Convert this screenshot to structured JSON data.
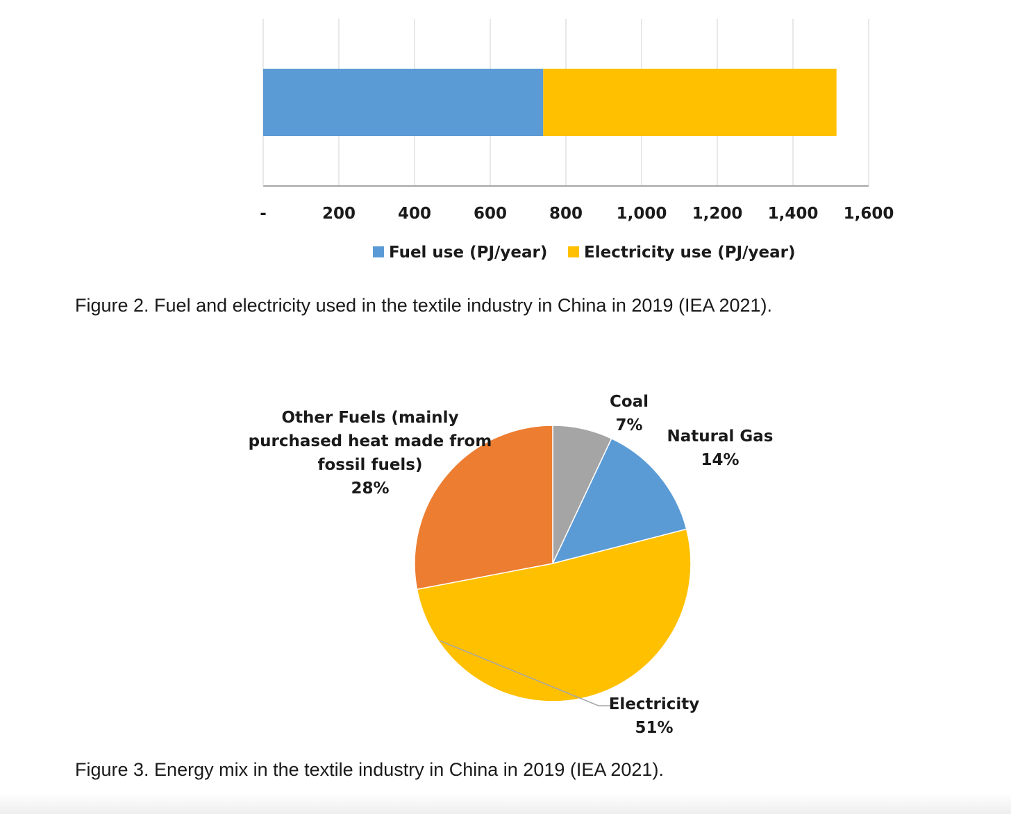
{
  "chart_data": [
    {
      "type": "bar",
      "orientation": "horizontal",
      "stacked": true,
      "categories": [
        ""
      ],
      "series": [
        {
          "name": "Fuel use (PJ/year)",
          "values": [
            740
          ],
          "color": "#5B9BD5"
        },
        {
          "name": "Electricity use (PJ/year)",
          "values": [
            775
          ],
          "color": "#FFC000"
        }
      ],
      "xlim": [
        0,
        1600
      ],
      "x_ticks": [
        0,
        200,
        400,
        600,
        800,
        1000,
        1200,
        1400,
        1600
      ],
      "x_tick_labels": [
        "-",
        "200",
        "400",
        "600",
        "800",
        "1,000",
        "1,200",
        "1,400",
        "1,600"
      ],
      "grid": true,
      "legend_position": "bottom",
      "caption": "Figure 2. Fuel and electricity used in the textile industry in China in 2019 (IEA 2021)."
    },
    {
      "type": "pie",
      "slices": [
        {
          "label": "Coal",
          "percent_label": "7%",
          "value": 7,
          "color": "#A5A5A5"
        },
        {
          "label": "Natural Gas",
          "percent_label": "14%",
          "value": 14,
          "color": "#5B9BD5"
        },
        {
          "label": "Electricity",
          "percent_label": "51%",
          "value": 51,
          "color": "#FFC000"
        },
        {
          "label": "Other Fuels (mainly purchased heat made from fossil fuels)",
          "label_lines": [
            "Other Fuels (mainly",
            "purchased heat made from",
            "fossil fuels)"
          ],
          "percent_label": "28%",
          "value": 28,
          "color": "#ED7D31"
        }
      ],
      "start_angle_degrees": 0,
      "direction": "clockwise",
      "caption": "Figure 3. Energy mix in the textile industry in China in 2019 (IEA 2021)."
    }
  ]
}
